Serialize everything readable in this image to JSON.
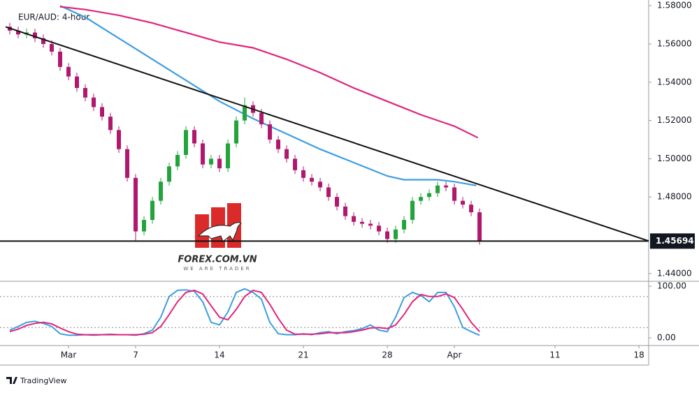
{
  "chart_data": [
    {
      "type": "candlestick",
      "title": "EUR/AUD: 4-hour",
      "x": [
        -3.5,
        -3,
        -2.5,
        -2,
        -1.5,
        -1,
        -0.5,
        0,
        0.5,
        1,
        1.5,
        2,
        2.5,
        3,
        3.5,
        4,
        4.5,
        5,
        5.5,
        6,
        6.5,
        7,
        7.5,
        8,
        8.5,
        9,
        9.5,
        10,
        10.5,
        11,
        11.5,
        12,
        12.5,
        13,
        13.5,
        14,
        14.5,
        15,
        15.5,
        16,
        16.5,
        17,
        17.5,
        18,
        18.5,
        19,
        19.5,
        20,
        20.5,
        21,
        21.5,
        22,
        22.5,
        23,
        23.5,
        24,
        24.5
      ],
      "open": [
        1.569,
        1.567,
        1.565,
        1.566,
        1.563,
        1.56,
        1.556,
        1.548,
        1.543,
        1.537,
        1.532,
        1.527,
        1.522,
        1.515,
        1.505,
        1.49,
        1.462,
        1.468,
        1.478,
        1.488,
        1.496,
        1.502,
        1.515,
        1.508,
        1.497,
        1.5,
        1.495,
        1.508,
        1.52,
        1.528,
        1.524,
        1.518,
        1.51,
        1.505,
        1.5,
        1.494,
        1.49,
        1.488,
        1.485,
        1.48,
        1.475,
        1.47,
        1.467,
        1.466,
        1.465,
        1.462,
        1.458,
        1.463,
        1.468,
        1.478,
        1.48,
        1.482,
        1.486,
        1.485,
        1.478,
        1.476,
        1.472
      ],
      "high": [
        1.571,
        1.569,
        1.568,
        1.568,
        1.565,
        1.562,
        1.558,
        1.55,
        1.545,
        1.539,
        1.534,
        1.529,
        1.524,
        1.517,
        1.507,
        1.492,
        1.47,
        1.48,
        1.49,
        1.498,
        1.504,
        1.517,
        1.517,
        1.51,
        1.502,
        1.502,
        1.51,
        1.522,
        1.532,
        1.53,
        1.526,
        1.52,
        1.512,
        1.507,
        1.502,
        1.496,
        1.492,
        1.49,
        1.487,
        1.482,
        1.477,
        1.472,
        1.469,
        1.468,
        1.467,
        1.464,
        1.465,
        1.47,
        1.48,
        1.482,
        1.484,
        1.488,
        1.488,
        1.487,
        1.48,
        1.478,
        1.474
      ],
      "low": [
        1.565,
        1.563,
        1.563,
        1.561,
        1.558,
        1.554,
        1.546,
        1.541,
        1.535,
        1.53,
        1.525,
        1.52,
        1.513,
        1.503,
        1.488,
        1.457,
        1.46,
        1.466,
        1.476,
        1.486,
        1.494,
        1.5,
        1.506,
        1.495,
        1.495,
        1.493,
        1.493,
        1.506,
        1.518,
        1.522,
        1.516,
        1.508,
        1.503,
        1.498,
        1.492,
        1.488,
        1.486,
        1.483,
        1.478,
        1.473,
        1.468,
        1.465,
        1.464,
        1.463,
        1.46,
        1.456,
        1.456,
        1.461,
        1.466,
        1.476,
        1.478,
        1.48,
        1.483,
        1.476,
        1.474,
        1.47,
        1.455
      ],
      "close": [
        1.567,
        1.565,
        1.566,
        1.563,
        1.56,
        1.556,
        1.548,
        1.543,
        1.537,
        1.532,
        1.527,
        1.522,
        1.515,
        1.505,
        1.49,
        1.462,
        1.468,
        1.478,
        1.488,
        1.496,
        1.502,
        1.515,
        1.508,
        1.497,
        1.5,
        1.495,
        1.508,
        1.52,
        1.528,
        1.524,
        1.518,
        1.51,
        1.505,
        1.5,
        1.494,
        1.49,
        1.488,
        1.485,
        1.48,
        1.475,
        1.47,
        1.467,
        1.466,
        1.465,
        1.462,
        1.458,
        1.463,
        1.468,
        1.478,
        1.48,
        1.482,
        1.486,
        1.485,
        1.478,
        1.476,
        1.472,
        1.457
      ],
      "up_color": "#22a33b",
      "down_color": "#b0186e",
      "series": [
        {
          "color": "#3d9ee0",
          "x": [
            -0.5,
            1,
            3,
            5,
            7,
            9,
            11,
            13,
            15,
            17,
            19,
            20,
            21,
            22,
            23,
            24.3
          ],
          "values": [
            1.58,
            1.574,
            1.563,
            1.552,
            1.541,
            1.53,
            1.521,
            1.513,
            1.505,
            1.498,
            1.491,
            1.489,
            1.489,
            1.489,
            1.488,
            1.486
          ]
        },
        {
          "color": "#e0247a",
          "x": [
            -0.5,
            1,
            3,
            5,
            7,
            9,
            11,
            13,
            15,
            17,
            19,
            21,
            23,
            24.4
          ],
          "values": [
            1.5795,
            1.578,
            1.575,
            1.571,
            1.566,
            1.561,
            1.558,
            1.552,
            1.545,
            1.537,
            1.53,
            1.523,
            1.517,
            1.511
          ]
        }
      ],
      "trendlines": [
        {
          "color": "#111111",
          "x": [
            -3.75,
            34.58
          ],
          "y": [
            1.569,
            1.457
          ]
        }
      ],
      "last_price": 1.45694,
      "xlim": [
        -3.75,
        34.58
      ],
      "ylim": [
        1.437,
        1.583
      ],
      "yticks": [
        {
          "value": 1.44,
          "label": "1.44000"
        },
        {
          "value": 1.48,
          "label": "1.48000"
        },
        {
          "value": 1.5,
          "label": "1.50000"
        },
        {
          "value": 1.52,
          "label": "1.52000"
        },
        {
          "value": 1.54,
          "label": "1.54000"
        },
        {
          "value": 1.56,
          "label": "1.56000"
        },
        {
          "value": 1.58,
          "label": "1.58000"
        }
      ]
    },
    {
      "type": "line",
      "x": [
        -3.5,
        -3,
        -2.5,
        -2,
        -1.5,
        -1,
        -0.5,
        0,
        0.5,
        1,
        1.5,
        2,
        2.5,
        3,
        3.5,
        4,
        4.5,
        5,
        5.5,
        6,
        6.5,
        7,
        7.5,
        8,
        8.5,
        9,
        9.5,
        10,
        10.5,
        11,
        11.5,
        12,
        12.5,
        13,
        13.5,
        14,
        14.5,
        15,
        15.5,
        16,
        16.5,
        17,
        17.5,
        18,
        18.5,
        19,
        19.5,
        20,
        20.5,
        21,
        21.5,
        22,
        22.5,
        23,
        23.5,
        24,
        24.5
      ],
      "series": [
        {
          "color": "#3d9ee0",
          "values": [
            15,
            22,
            30,
            32,
            28,
            22,
            8,
            5,
            5,
            6,
            5,
            6,
            7,
            6,
            6,
            5,
            8,
            15,
            40,
            80,
            92,
            93,
            90,
            70,
            30,
            25,
            50,
            88,
            95,
            88,
            75,
            30,
            8,
            6,
            6,
            8,
            6,
            10,
            12,
            8,
            12,
            14,
            18,
            25,
            15,
            12,
            40,
            78,
            88,
            82,
            70,
            88,
            88,
            60,
            20,
            12,
            5
          ]
        },
        {
          "color": "#e0247a",
          "values": [
            12,
            17,
            24,
            28,
            30,
            27,
            19,
            12,
            7,
            6,
            6,
            6,
            6,
            6,
            6,
            6,
            7,
            10,
            22,
            45,
            70,
            88,
            92,
            85,
            62,
            40,
            35,
            55,
            80,
            92,
            88,
            65,
            38,
            15,
            7,
            7,
            7,
            8,
            10,
            10,
            10,
            12,
            15,
            19,
            20,
            18,
            25,
            45,
            70,
            84,
            80,
            80,
            85,
            78,
            55,
            30,
            12
          ]
        }
      ],
      "levels": [
        80,
        20
      ],
      "xlim": [
        -3.75,
        34.58
      ],
      "ylim": [
        -12.2,
        106.8
      ],
      "yticks": [
        {
          "value": 0,
          "label": "0.00"
        },
        {
          "value": 100,
          "label": "100.00"
        }
      ],
      "xticks": [
        {
          "value": 0,
          "label": "Mar"
        },
        {
          "value": 4,
          "label": "7"
        },
        {
          "value": 9,
          "label": "14"
        },
        {
          "value": 14,
          "label": "21"
        },
        {
          "value": 19,
          "label": "28"
        },
        {
          "value": 23,
          "label": "Apr"
        },
        {
          "value": 29,
          "label": "11"
        },
        {
          "value": 34,
          "label": "18"
        }
      ]
    }
  ],
  "watermark": {
    "title": "FOREX.COM.VN",
    "tagline": "WE ARE TRADER"
  },
  "footer": {
    "brand": "TradingView"
  }
}
